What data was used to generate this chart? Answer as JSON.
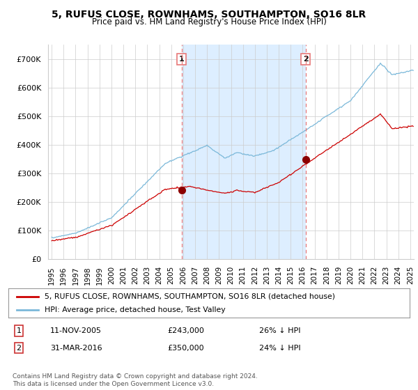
{
  "title": "5, RUFUS CLOSE, ROWNHAMS, SOUTHAMPTON, SO16 8LR",
  "subtitle": "Price paid vs. HM Land Registry's House Price Index (HPI)",
  "ylabel_ticks": [
    "£0",
    "£100K",
    "£200K",
    "£300K",
    "£400K",
    "£500K",
    "£600K",
    "£700K"
  ],
  "ytick_values": [
    0,
    100000,
    200000,
    300000,
    400000,
    500000,
    600000,
    700000
  ],
  "ylim": [
    0,
    750000
  ],
  "xlim_start": 1994.7,
  "xlim_end": 2025.3,
  "hpi_color": "#7ab8d9",
  "price_color": "#cc0000",
  "shade_color": "#ddeeff",
  "point1_x": 2005.87,
  "point1_y": 243000,
  "point1_label": "1",
  "point2_x": 2016.25,
  "point2_y": 350000,
  "point2_label": "2",
  "vline_color": "#e87878",
  "legend_label_red": "5, RUFUS CLOSE, ROWNHAMS, SOUTHAMPTON, SO16 8LR (detached house)",
  "legend_label_blue": "HPI: Average price, detached house, Test Valley",
  "table_row1": [
    "1",
    "11-NOV-2005",
    "£243,000",
    "26% ↓ HPI"
  ],
  "table_row2": [
    "2",
    "31-MAR-2016",
    "£350,000",
    "24% ↓ HPI"
  ],
  "footnote": "Contains HM Land Registry data © Crown copyright and database right 2024.\nThis data is licensed under the Open Government Licence v3.0.",
  "bg_color": "#ffffff",
  "grid_color": "#cccccc"
}
